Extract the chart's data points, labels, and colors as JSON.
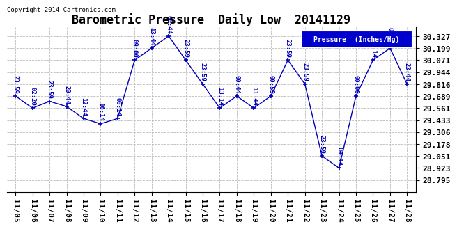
{
  "title": "Barometric Pressure  Daily Low  20141129",
  "copyright": "Copyright 2014 Cartronics.com",
  "legend_label": "Pressure  (Inches/Hg)",
  "x_labels": [
    "11/05",
    "11/06",
    "11/07",
    "11/08",
    "11/09",
    "11/10",
    "11/11",
    "11/12",
    "11/13",
    "11/14",
    "11/15",
    "11/16",
    "11/17",
    "11/18",
    "11/19",
    "11/20",
    "11/21",
    "11/22",
    "11/23",
    "11/24",
    "11/25",
    "11/26",
    "11/27",
    "11/28"
  ],
  "x_values": [
    0,
    1,
    2,
    3,
    4,
    5,
    6,
    7,
    8,
    9,
    10,
    11,
    12,
    13,
    14,
    15,
    16,
    17,
    18,
    19,
    20,
    21,
    22,
    23
  ],
  "y_values": [
    29.689,
    29.561,
    29.633,
    29.578,
    29.45,
    29.394,
    29.45,
    30.071,
    30.199,
    30.327,
    30.071,
    29.816,
    29.561,
    29.689,
    29.561,
    29.689,
    30.071,
    29.816,
    29.051,
    28.923,
    29.689,
    30.071,
    30.199,
    29.816
  ],
  "point_labels": [
    "23:59",
    "02:20",
    "23:59",
    "20:44",
    "12:44",
    "16:14",
    "00:14",
    "09:00",
    "13:44",
    "00:44",
    "23:59",
    "23:59",
    "13:14",
    "00:44",
    "11:44",
    "00:59",
    "23:59",
    "23:59",
    "23:59",
    "04:44",
    "00:00",
    "13:14",
    "00:00",
    "23:44"
  ],
  "y_ticks": [
    28.795,
    28.923,
    29.051,
    29.178,
    29.306,
    29.433,
    29.561,
    29.689,
    29.816,
    29.944,
    30.071,
    30.199,
    30.327
  ],
  "ylim": [
    28.67,
    30.42
  ],
  "xlim": [
    -0.5,
    23.5
  ],
  "line_color": "#0000bb",
  "bg_color": "#ffffff",
  "grid_color": "#bbbbbb",
  "title_fontsize": 12,
  "axis_fontsize": 8,
  "label_fontsize": 6.5,
  "legend_bg": "#0000cc",
  "legend_text_color": "#ffffff"
}
